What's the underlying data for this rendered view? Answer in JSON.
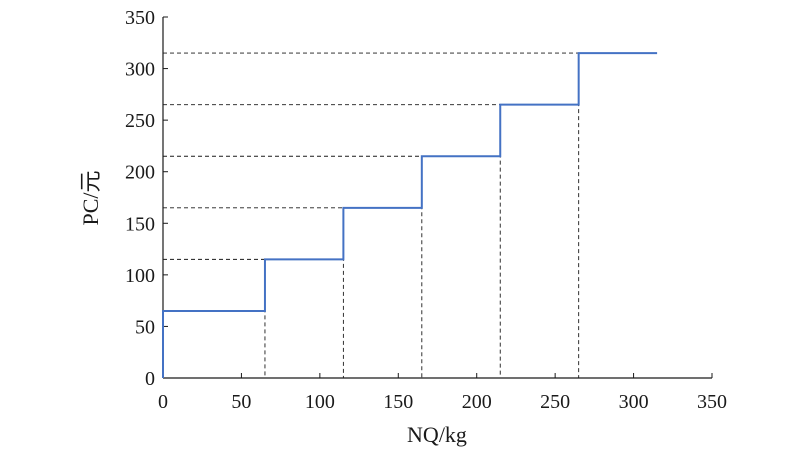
{
  "chart_data": {
    "type": "line",
    "step": true,
    "xlabel": "NQ/kg",
    "ylabel": "PC/元",
    "xlim": [
      0,
      350
    ],
    "ylim": [
      0,
      350
    ],
    "xticks": [
      0,
      50,
      100,
      150,
      200,
      250,
      300,
      350
    ],
    "yticks": [
      0,
      50,
      100,
      150,
      200,
      250,
      300,
      350
    ],
    "grid": false,
    "guides": "dashed drop lines from each step corner to both axes",
    "series": [
      {
        "color": "#4472c4",
        "x": [
          0,
          0,
          65,
          65,
          115,
          115,
          165,
          165,
          215,
          215,
          265,
          265,
          315
        ],
        "y": [
          0,
          65,
          65,
          115,
          115,
          165,
          165,
          215,
          215,
          265,
          265,
          315,
          315
        ]
      }
    ]
  }
}
